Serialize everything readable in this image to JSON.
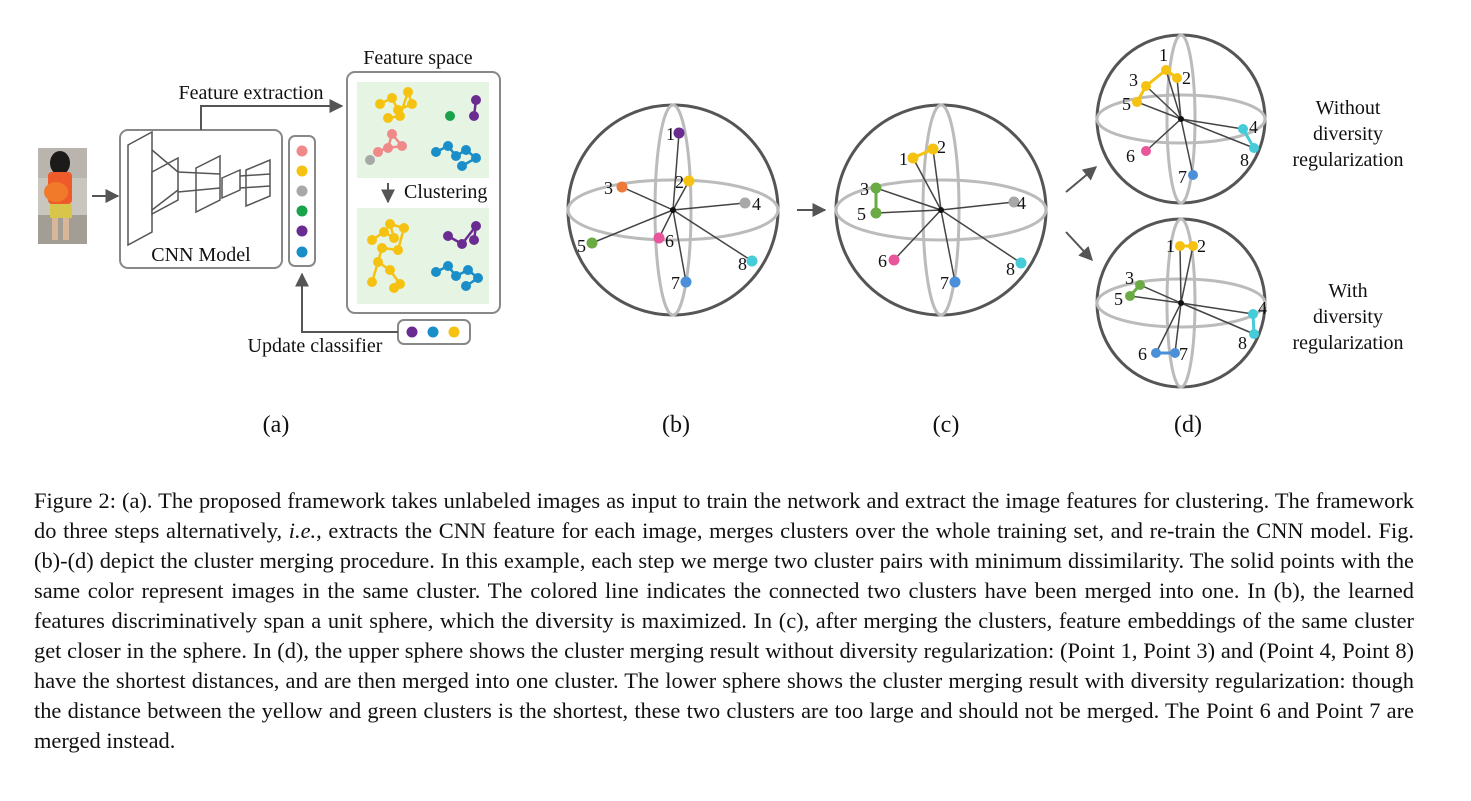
{
  "panel_a": {
    "feature_extraction": "Feature extraction",
    "feature_space": "Feature space",
    "clustering": "Clustering",
    "cnn_model": "CNN Model",
    "update_classifier": "Update classifier",
    "sublabel": "(a)"
  },
  "panel_b": {
    "sublabel": "(b)",
    "points": [
      "1",
      "2",
      "3",
      "4",
      "5",
      "6",
      "7",
      "8"
    ]
  },
  "panel_c": {
    "sublabel": "(c)",
    "points": [
      "1",
      "2",
      "3",
      "4",
      "5",
      "6",
      "7",
      "8"
    ]
  },
  "panel_d": {
    "sublabel": "(d)",
    "top_points": [
      "1",
      "2",
      "3",
      "4",
      "5",
      "6",
      "7",
      "8"
    ],
    "bottom_points": [
      "1",
      "2",
      "3",
      "4",
      "5",
      "6",
      "7",
      "8"
    ],
    "without_label": [
      "Without",
      "diversity",
      "regularization"
    ],
    "with_label": [
      "With",
      "diversity",
      "regularization"
    ]
  },
  "colors": {
    "purple": "#6a2c91",
    "yellow": "#f5c211",
    "orange": "#ee7a3a",
    "gray": "#a8a8a8",
    "green": "#6aab45",
    "pink": "#e8559b",
    "blue": "#4a8fd8",
    "cyan": "#45ccd8",
    "salmon": "#f08a8a",
    "dgreen": "#1aa34a",
    "teal": "#1a8ec8",
    "mint": "#e6f4e4"
  },
  "caption": {
    "p1": "Figure 2: (a). The proposed framework takes unlabeled images as input to train the network and extract the image features for clustering. The framework do three steps alternatively, ",
    "ie": "i.e.",
    "p2": ", extracts the CNN feature for each image, merges clusters over the whole training set, and re-train the CNN model. Fig. (b)-(d) depict the cluster merging procedure. In this example, each step we merge two cluster pairs with minimum dissimilarity. The solid points with the same color represent images in the same cluster. The colored line indicates the connected two clusters have been merged into one. In (b), the learned features discriminatively span a unit sphere, which the diversity is maximized. In (c), after merging the clusters, feature embeddings of the same cluster get closer in the sphere. In (d), the upper sphere shows the cluster merging result without diversity regularization: (Point 1, Point 3) and (Point 4, Point 8) have the shortest distances, and are then merged into one cluster. The lower sphere shows the cluster merging result with diversity regularization: though the distance between the yellow and green clusters is the shortest, these two clusters are too large and should not be merged. The Point 6 and Point 7 are merged instead."
  }
}
